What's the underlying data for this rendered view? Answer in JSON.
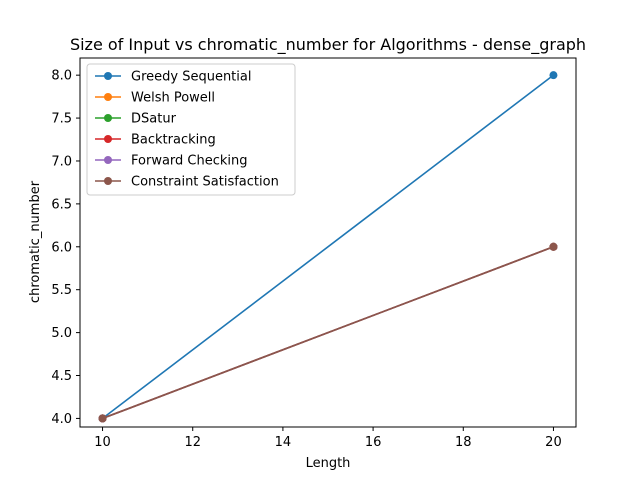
{
  "chart_data": {
    "type": "line",
    "title": "Size of Input vs chromatic_number for Algorithms - dense_graph",
    "xlabel": "Length",
    "ylabel": "chromatic_number",
    "x": [
      10,
      20
    ],
    "xlim": [
      9.5,
      20.5
    ],
    "ylim": [
      3.9,
      8.2
    ],
    "xticks": [
      10,
      12,
      14,
      16,
      18,
      20
    ],
    "yticks": [
      4.0,
      4.5,
      5.0,
      5.5,
      6.0,
      6.5,
      7.0,
      7.5,
      8.0
    ],
    "grid": false,
    "legend_position": "top-left",
    "series": [
      {
        "name": "Greedy Sequential",
        "color": "#1f77b4",
        "values": [
          4,
          8
        ]
      },
      {
        "name": "Welsh Powell",
        "color": "#ff7f0e",
        "values": [
          4,
          6
        ]
      },
      {
        "name": "DSatur",
        "color": "#2ca02c",
        "values": [
          4,
          6
        ]
      },
      {
        "name": "Backtracking",
        "color": "#d62728",
        "values": [
          4,
          6
        ]
      },
      {
        "name": "Forward Checking",
        "color": "#9467bd",
        "values": [
          4,
          6
        ]
      },
      {
        "name": "Constraint Satisfaction",
        "color": "#8c564b",
        "values": [
          4,
          6
        ]
      }
    ]
  }
}
